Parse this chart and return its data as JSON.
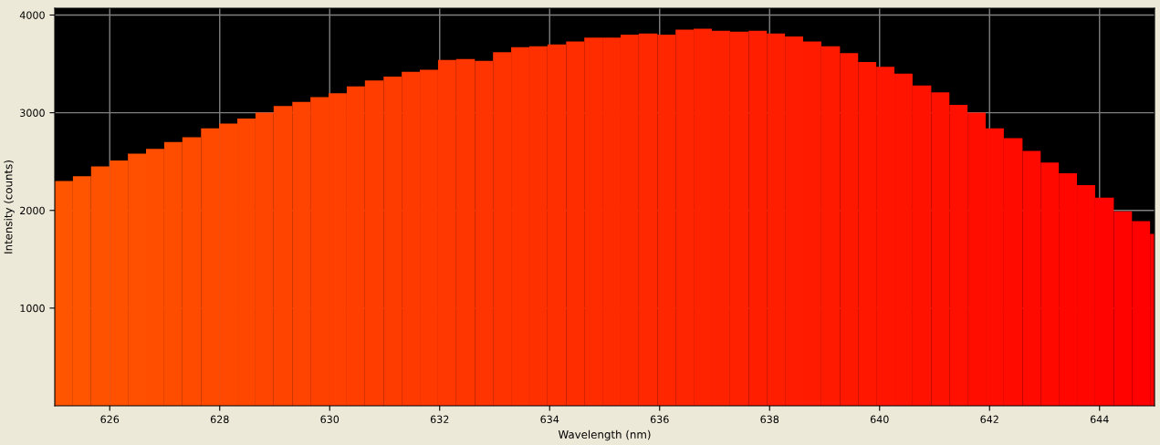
{
  "chart_data": {
    "type": "histogram",
    "xlabel": "Wavelength (nm)",
    "ylabel": "Intensity (counts)",
    "bins": [
      625.0,
      625.33,
      625.66,
      626.0,
      626.33,
      626.66,
      626.99,
      627.32,
      627.66,
      627.99,
      628.32,
      628.65,
      628.98,
      629.32,
      629.65,
      629.98,
      630.31,
      630.64,
      630.98,
      631.31,
      631.64,
      631.97,
      632.3,
      632.64,
      632.97,
      633.3,
      633.63,
      633.96,
      634.3,
      634.63,
      634.96,
      635.29,
      635.62,
      635.96,
      636.29,
      636.62,
      636.95,
      637.28,
      637.62,
      637.95,
      638.28,
      638.61,
      638.94,
      639.28,
      639.61,
      639.94,
      640.27,
      640.6,
      640.94,
      641.27,
      641.6,
      641.93,
      642.26,
      642.6,
      642.93,
      643.26,
      643.59,
      643.92,
      644.26,
      644.59,
      644.92,
      645.0
    ],
    "values": [
      2300,
      2350,
      2450,
      2510,
      2580,
      2630,
      2700,
      2750,
      2840,
      2890,
      2940,
      3000,
      3070,
      3110,
      3160,
      3200,
      3270,
      3330,
      3370,
      3420,
      3440,
      3540,
      3550,
      3530,
      3620,
      3670,
      3680,
      3700,
      3730,
      3770,
      3770,
      3800,
      3810,
      3800,
      3850,
      3860,
      3840,
      3830,
      3840,
      3810,
      3780,
      3730,
      3680,
      3610,
      3520,
      3470,
      3400,
      3280,
      3210,
      3080,
      3000,
      2840,
      2740,
      2610,
      2490,
      2380,
      2260,
      2130,
      1990,
      1890,
      1760
    ],
    "colors": [
      "#ff5500",
      "#ff5400",
      "#ff5200",
      "#ff5100",
      "#ff4f00",
      "#ff4e00",
      "#ff4d00",
      "#ff4b00",
      "#ff4a00",
      "#ff4800",
      "#ff4700",
      "#ff4500",
      "#ff4400",
      "#ff4300",
      "#ff4100",
      "#ff4000",
      "#ff3e00",
      "#ff3d00",
      "#ff3c00",
      "#ff3a00",
      "#ff3900",
      "#ff3700",
      "#ff3600",
      "#ff3400",
      "#ff3300",
      "#ff3200",
      "#ff3000",
      "#ff2f00",
      "#ff2d00",
      "#ff2c00",
      "#ff2b00",
      "#ff2900",
      "#ff2800",
      "#ff2600",
      "#ff2500",
      "#ff2300",
      "#ff2200",
      "#ff2100",
      "#ff1f00",
      "#ff1e00",
      "#ff1c00",
      "#ff1b00",
      "#ff1a00",
      "#ff1800",
      "#ff1700",
      "#ff1500",
      "#ff1400",
      "#ff1200",
      "#ff1100",
      "#ff1000",
      "#ff0e00",
      "#ff0d00",
      "#ff0b00",
      "#ff0a00",
      "#ff0900",
      "#ff0700",
      "#ff0600",
      "#ff0400",
      "#ff0300",
      "#ff0100",
      "#ff0000"
    ],
    "xlim": [
      625,
      645
    ],
    "ylim": [
      0,
      4070
    ],
    "xticks": [
      626,
      628,
      630,
      632,
      634,
      636,
      638,
      640,
      642,
      644
    ],
    "yticks": [
      1000,
      2000,
      3000,
      4000
    ],
    "grid": true
  }
}
